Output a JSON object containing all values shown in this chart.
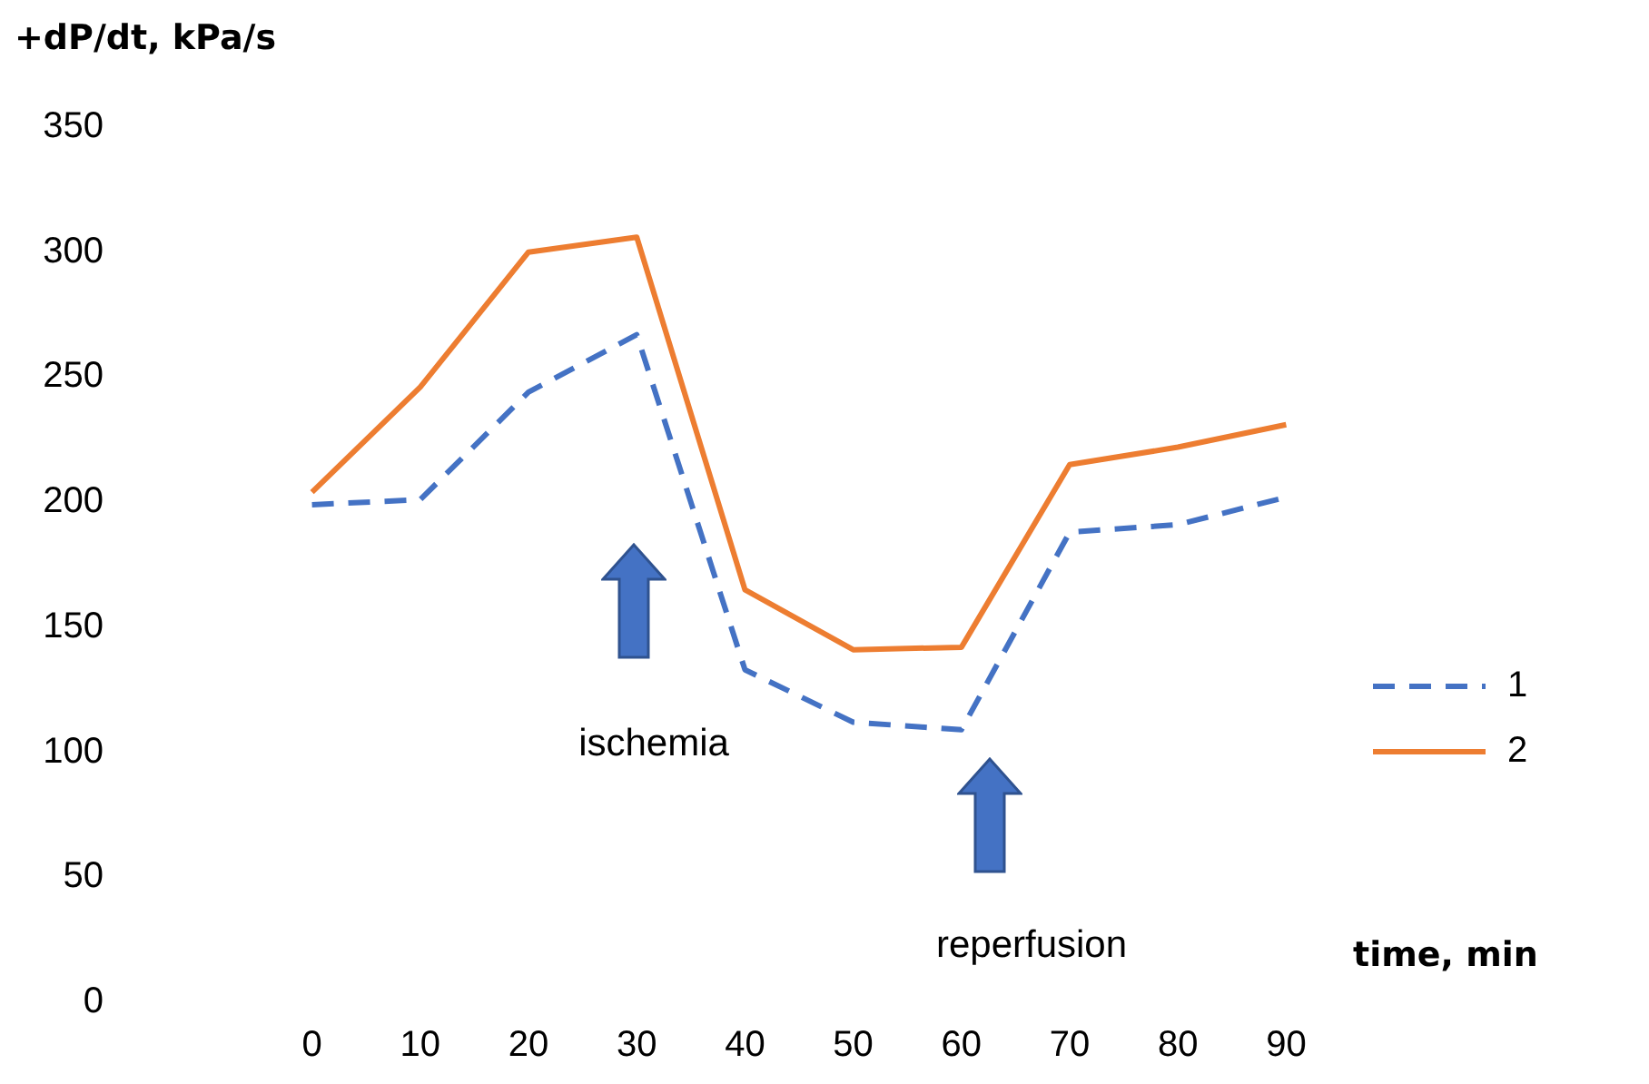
{
  "chart_data": {
    "type": "line",
    "xlabel": "time, min",
    "ylabel": "+dP/dt, kPa/s",
    "categories": [
      "0",
      "10",
      "20",
      "30",
      "40",
      "50",
      "60",
      "70",
      "80",
      "90"
    ],
    "series": [
      {
        "name": "1",
        "color": "#4472c4",
        "line_style": "dashed",
        "values": [
          199,
          201,
          244,
          267,
          133,
          112,
          109,
          188,
          191,
          202
        ]
      },
      {
        "name": "2",
        "color": "#ed7d31",
        "line_style": "solid",
        "values": [
          204,
          246,
          300,
          306,
          165,
          141,
          142,
          215,
          222,
          231
        ]
      }
    ],
    "ylim": [
      0,
      350
    ],
    "yticks": [
      0,
      50,
      100,
      150,
      200,
      250,
      300,
      350
    ],
    "grid": false,
    "legend": "right",
    "marker": "none",
    "annotations": [
      "ischemia",
      "reperfusion"
    ]
  }
}
